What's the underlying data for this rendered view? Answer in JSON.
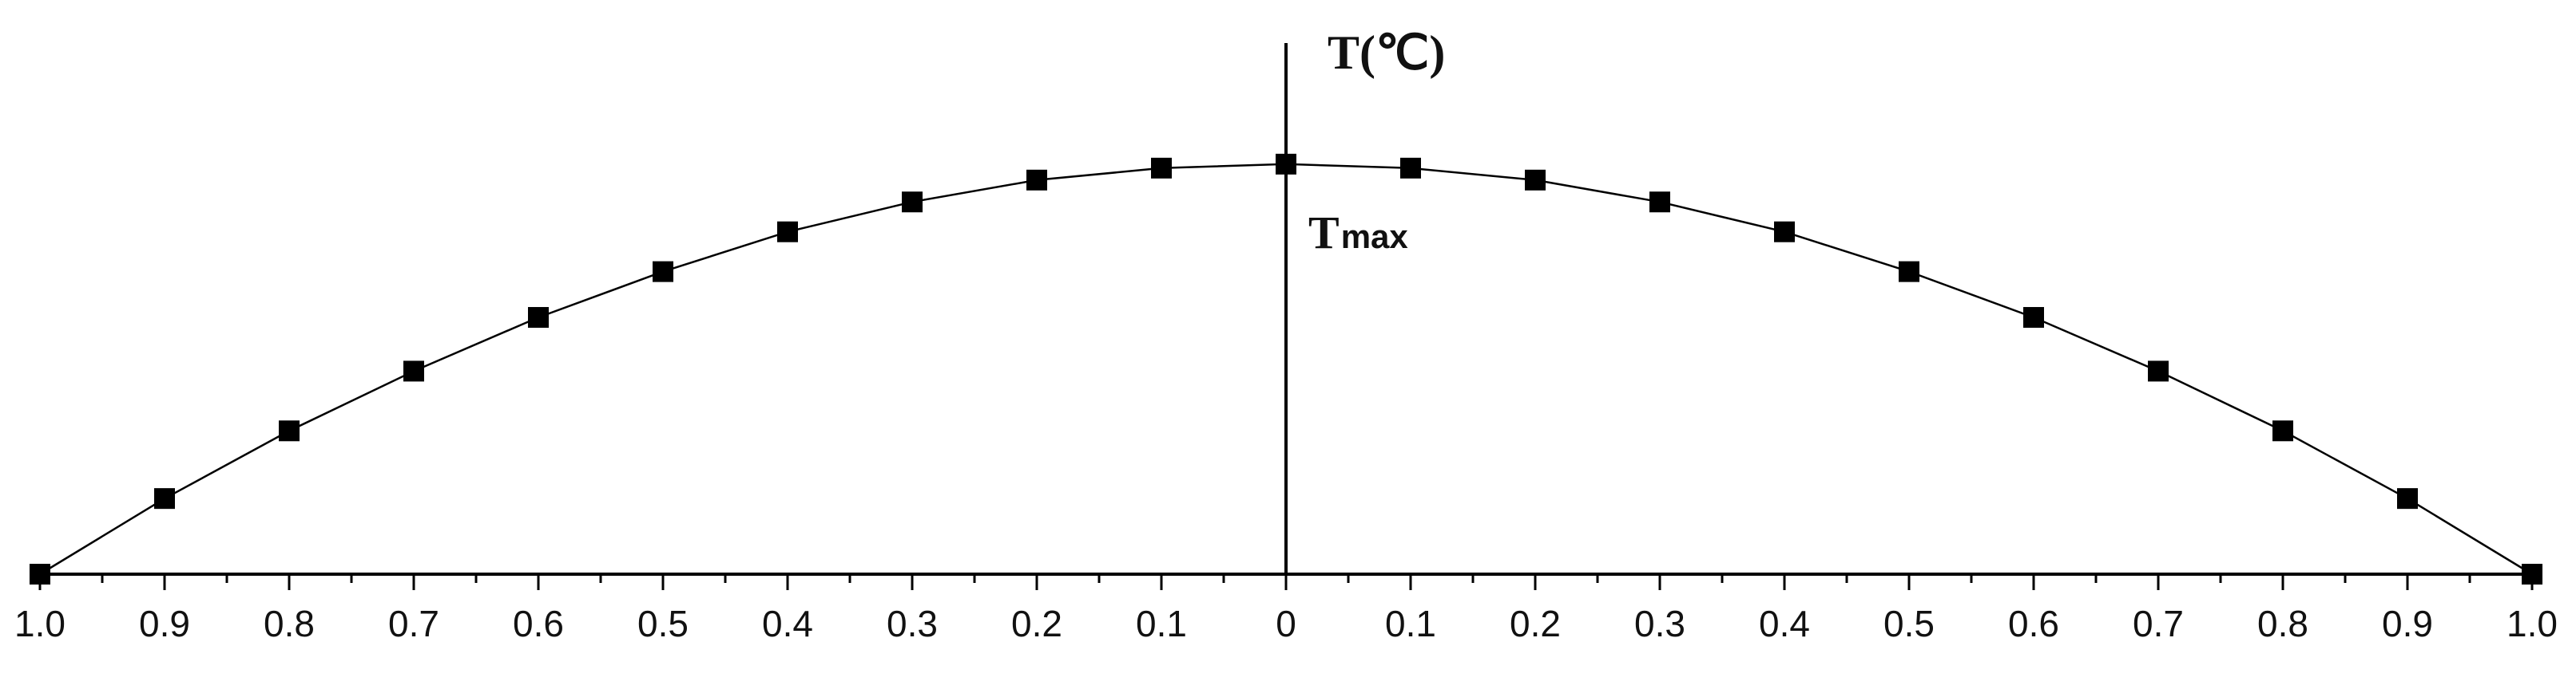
{
  "chart_data": {
    "type": "line",
    "title": "",
    "ylabel": "T(℃)",
    "xlabel": "",
    "x_tick_labels": [
      "1.0",
      "0.9",
      "0.8",
      "0.7",
      "0.6",
      "0.5",
      "0.4",
      "0.3",
      "0.2",
      "0.1",
      "0",
      "0.1",
      "0.2",
      "0.3",
      "0.4",
      "0.5",
      "0.6",
      "0.7",
      "0.8",
      "0.9",
      "1.0"
    ],
    "x": [
      -1.0,
      -0.9,
      -0.8,
      -0.7,
      -0.6,
      -0.5,
      -0.4,
      -0.3,
      -0.2,
      -0.1,
      0.0,
      0.1,
      0.2,
      0.3,
      0.4,
      0.5,
      0.6,
      0.7,
      0.8,
      0.9,
      1.0
    ],
    "xlim": [
      -1.0,
      1.0
    ],
    "ylim": [
      0,
      1.25
    ],
    "grid": false,
    "legend": "none",
    "series": [
      {
        "values": [
          0.0,
          0.19,
          0.36,
          0.51,
          0.645,
          0.76,
          0.86,
          0.935,
          0.99,
          1.02,
          1.03,
          1.02,
          0.99,
          0.935,
          0.86,
          0.76,
          0.645,
          0.51,
          0.36,
          0.19,
          0.0
        ],
        "marker": "square",
        "color": "#000000"
      }
    ],
    "annotations": [
      {
        "text": "T",
        "subscript": "max",
        "at_x": 0.0
      }
    ],
    "y_axis_at_x": 0.0
  }
}
